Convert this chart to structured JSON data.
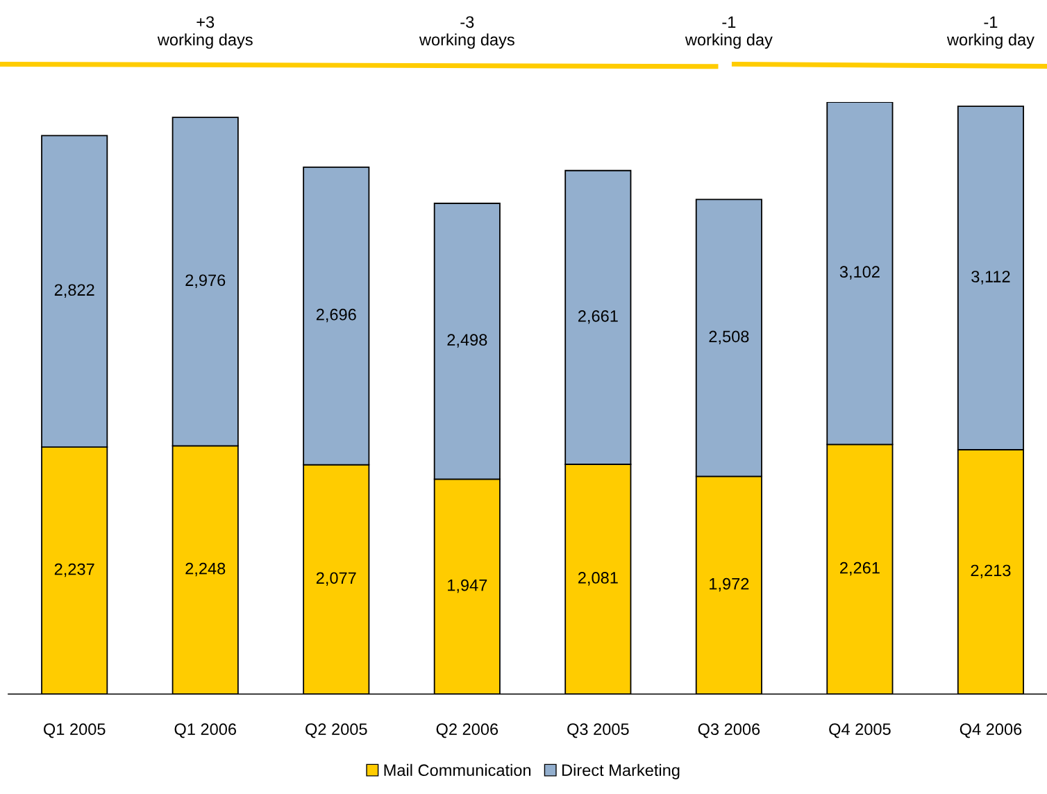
{
  "chart_data": {
    "type": "bar",
    "stacked": true,
    "legend": "bottom",
    "grid": false,
    "categories": [
      "Q1 2005",
      "Q1 2006",
      "Q2 2005",
      "Q2 2006",
      "Q3 2005",
      "Q3 2006",
      "Q4 2005",
      "Q4 2006"
    ],
    "series": [
      {
        "name": "Mail Communication",
        "color": "#ffcc00",
        "values": [
          2237,
          2248,
          2077,
          1947,
          2081,
          1972,
          2261,
          2213
        ],
        "value_labels": [
          "2,237",
          "2,248",
          "2,077",
          "1,947",
          "2,081",
          "1,972",
          "2,261",
          "2,213"
        ]
      },
      {
        "name": "Direct Marketing",
        "color": "#93afce",
        "values": [
          2822,
          2976,
          2696,
          2498,
          2661,
          2508,
          3102,
          3112
        ],
        "value_labels": [
          "2,822",
          "2,976",
          "2,696",
          "2,498",
          "2,661",
          "2,508",
          "3,102",
          "3,112"
        ]
      }
    ],
    "annotations": [
      "+3\nworking days",
      "-3\nworking days",
      "-1\nworking day",
      "-1\nworking day"
    ]
  }
}
